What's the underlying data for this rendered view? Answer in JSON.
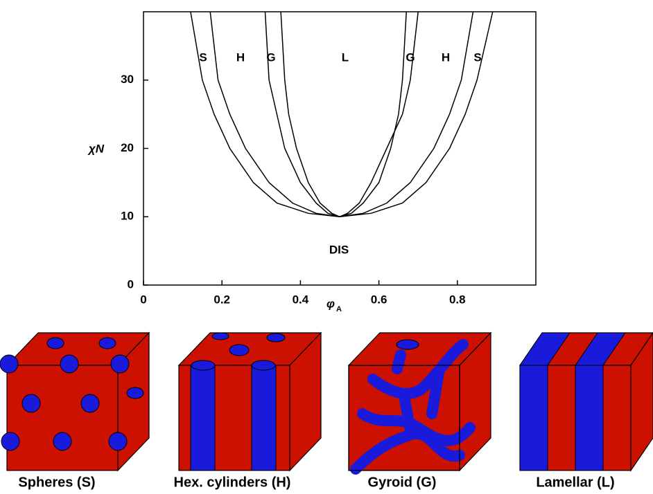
{
  "chart_data": {
    "type": "line",
    "ylabel": "χN",
    "xlabel": "φ",
    "xlabel_subscript": "A",
    "xlim": [
      0,
      1
    ],
    "ylim": [
      0,
      40
    ],
    "xticks": [
      0,
      0.2,
      0.4,
      0.6,
      0.8
    ],
    "yticks": [
      0,
      10,
      20,
      30
    ],
    "series": [
      {
        "color": "#000000",
        "x": [
          0.12,
          0.15,
          0.18,
          0.22,
          0.28,
          0.34,
          0.42,
          0.5,
          0.58,
          0.66,
          0.72,
          0.78,
          0.82,
          0.85,
          0.89
        ],
        "y": [
          40,
          30,
          25,
          20,
          15,
          12,
          10.5,
          10,
          10.5,
          12,
          15,
          20,
          25,
          30,
          40
        ]
      },
      {
        "color": "#000000",
        "x": [
          0.17,
          0.19,
          0.22,
          0.26,
          0.32,
          0.38,
          0.44,
          0.5,
          0.56,
          0.62,
          0.68,
          0.74,
          0.78,
          0.81,
          0.84
        ],
        "y": [
          40,
          30,
          25,
          20,
          15,
          12,
          10.5,
          10,
          10.5,
          12,
          15,
          20,
          25,
          30,
          40
        ]
      },
      {
        "color": "#000000",
        "x": [
          0.31,
          0.32,
          0.34,
          0.36,
          0.4,
          0.44,
          0.47,
          0.5,
          0.53,
          0.56,
          0.6,
          0.63,
          0.65,
          0.66,
          0.67
        ],
        "y": [
          40,
          30,
          25,
          20,
          15,
          12,
          10.5,
          10,
          10.5,
          12,
          15,
          20,
          25,
          30,
          40
        ]
      },
      {
        "color": "#000000",
        "x": [
          0.35,
          0.36,
          0.37,
          0.39,
          0.42,
          0.45,
          0.48,
          0.5,
          0.52,
          0.55,
          0.58,
          0.62,
          0.66,
          0.68,
          0.7
        ],
        "y": [
          40,
          30,
          25,
          20,
          15,
          12,
          10.5,
          10,
          10.5,
          12,
          15,
          20,
          25,
          30,
          40
        ]
      }
    ],
    "annotations": [
      "S",
      "H",
      "G",
      "L",
      "G",
      "H",
      "S",
      "DIS"
    ]
  },
  "captions": [
    "Spheres (S)",
    "Hex. cylinders (H)",
    "Gyroid (G)",
    "Lamellar (L)"
  ]
}
